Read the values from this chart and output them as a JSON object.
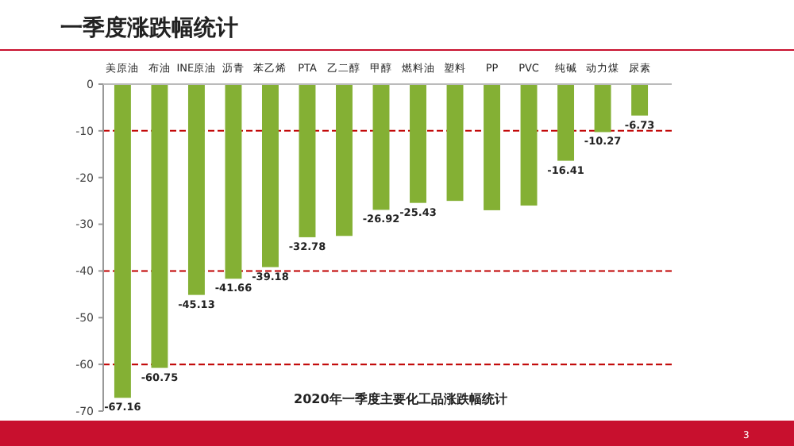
{
  "chart_data": {
    "type": "bar",
    "title": "一季度涨跌幅统计",
    "categories": [
      "美原油",
      "布油",
      "INE原油",
      "沥青",
      "苯乙烯",
      "PTA",
      "乙二醇",
      "甲醇",
      "燃料油",
      "塑料",
      "PP",
      "PVC",
      "纯碱",
      "动力煤",
      "尿素"
    ],
    "values": [
      -67.16,
      -60.75,
      -45.13,
      -41.66,
      -39.18,
      -32.78,
      -32.5,
      -26.92,
      -25.43,
      -25,
      -27,
      -26,
      -16.41,
      -10.27,
      -6.73
    ],
    "value_labels": [
      "-67.16",
      "-60.75",
      "-45.13",
      "-41.66",
      "-39.18",
      "-32.78",
      null,
      "-26.92",
      "-25.43",
      null,
      null,
      null,
      "-16.41",
      "-10.27",
      "-6.73"
    ],
    "color": "#84b034",
    "ylim": [
      -70,
      0
    ],
    "yticks": [
      0,
      -10,
      -20,
      -30,
      -40,
      -50,
      -60,
      -70
    ],
    "ref_lines": [
      {
        "axis": "y",
        "value": -10,
        "color": "#c00000",
        "line_style": "dashed"
      },
      {
        "axis": "y",
        "value": -40,
        "color": "#c00000",
        "line_style": "dashed"
      },
      {
        "axis": "y",
        "value": -60,
        "color": "#c00000",
        "line_style": "dashed"
      }
    ],
    "annotations": [
      "2020年一季度主要化工品涨跌幅统计",
      "3"
    ]
  }
}
